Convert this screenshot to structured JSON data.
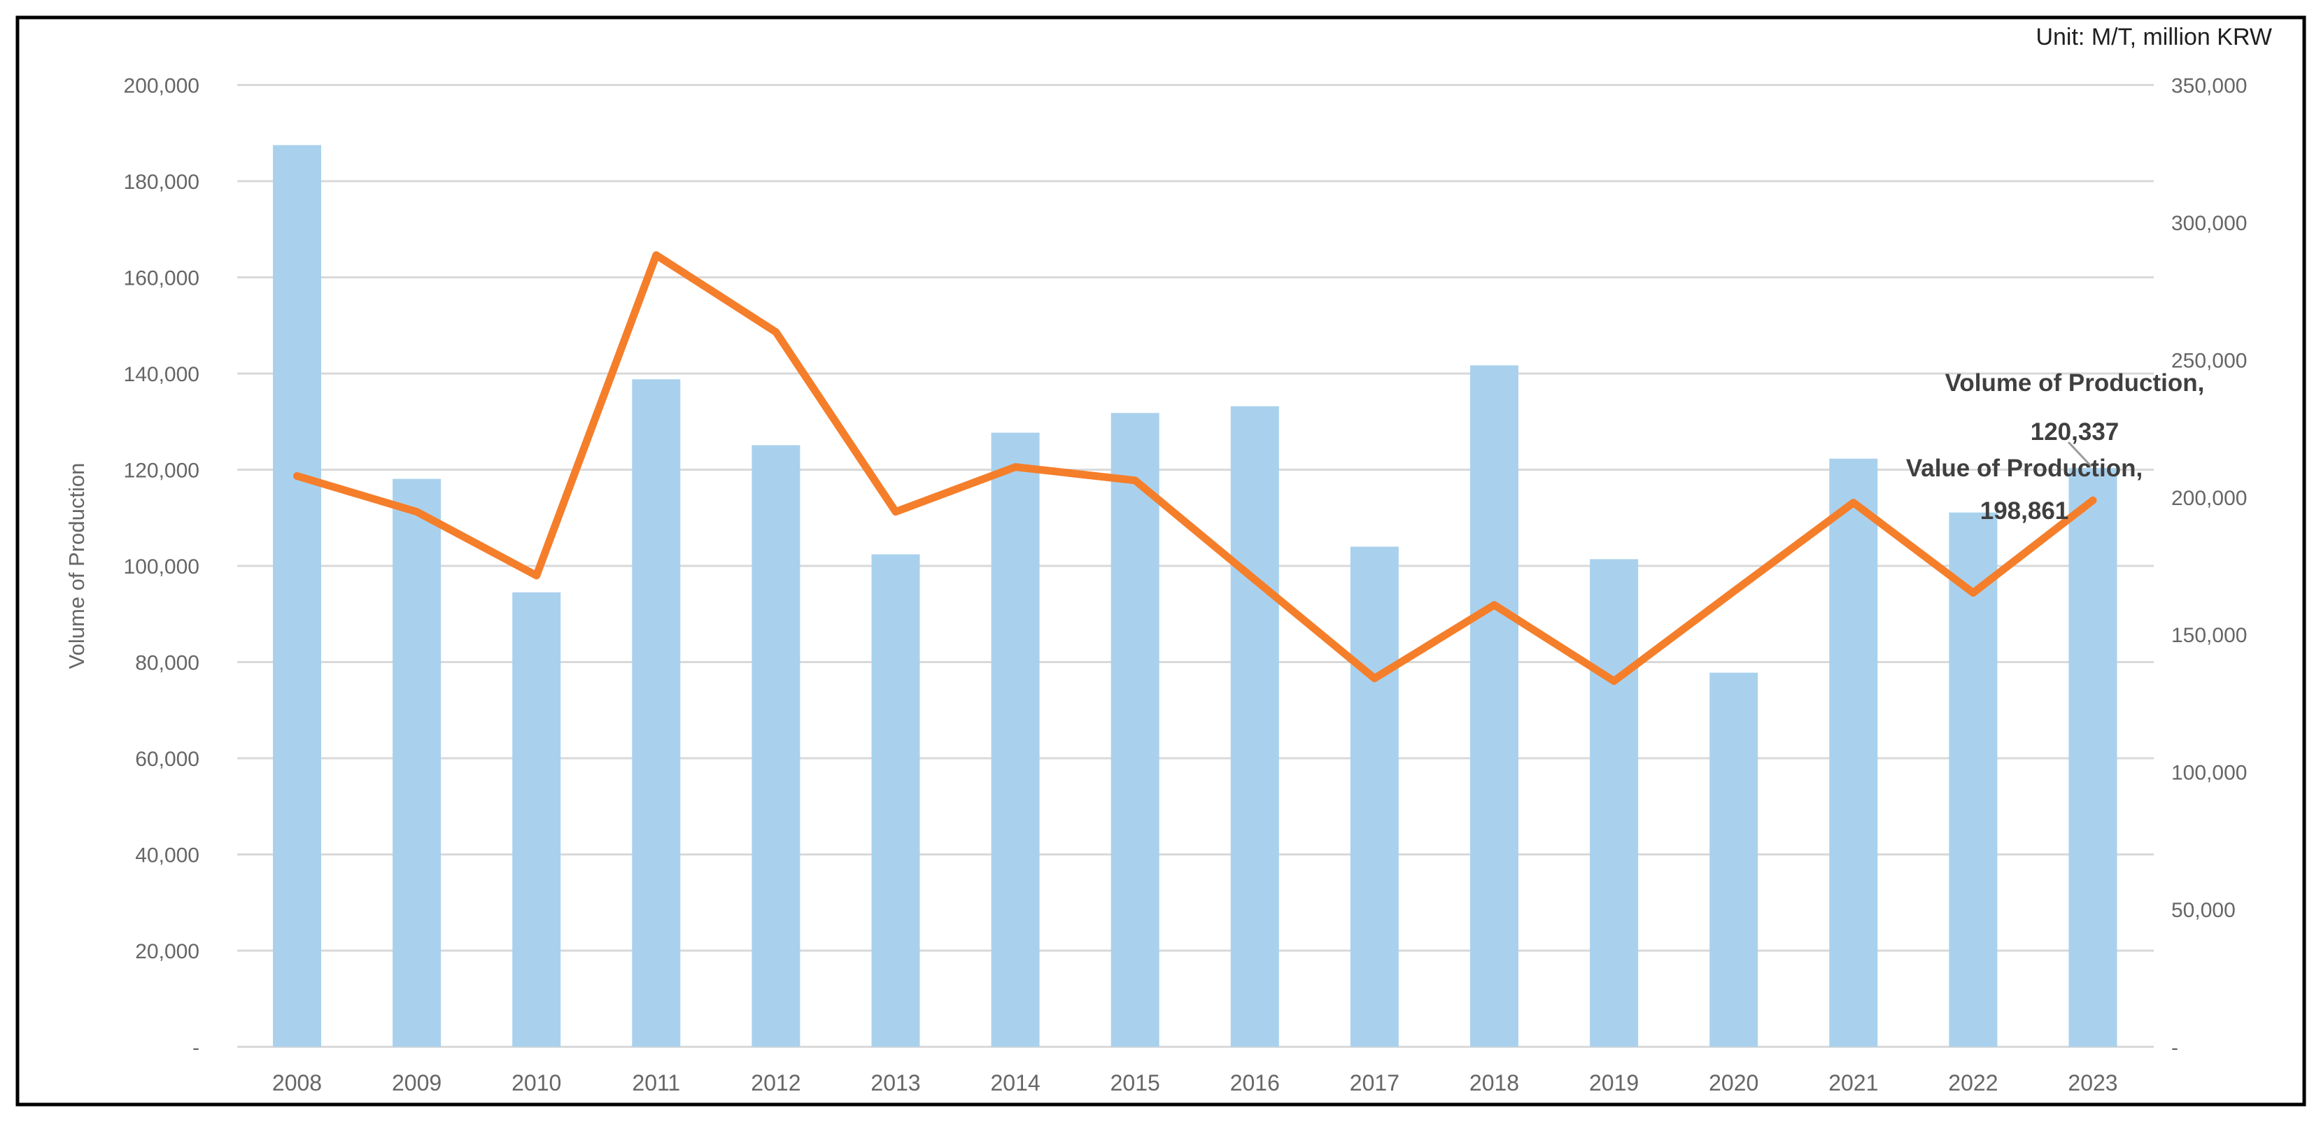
{
  "unit_label": "Unit: M/T, million KRW",
  "colors": {
    "bar_fill": "#A9D1ED",
    "line_stroke": "#F57E2B",
    "gridline": "#D9D9D9",
    "axis_text": "#666666",
    "data_label_text": "#3F3F3F",
    "unit_text": "#1F1F1F",
    "border": "#000000",
    "leader_line": "#9B9B9B",
    "background": "#FFFFFF"
  },
  "chart_data": {
    "type": "bar",
    "subtype": "combo-bar-line-dual-axis",
    "title": "",
    "xlabel": "",
    "categories": [
      "2008",
      "2009",
      "2010",
      "2011",
      "2012",
      "2013",
      "2014",
      "2015",
      "2016",
      "2017",
      "2018",
      "2019",
      "2020",
      "2021",
      "2022",
      "2023"
    ],
    "series": [
      {
        "name": "Volume of Production",
        "type": "bar",
        "axis": "left",
        "unit": "M/T",
        "values": [
          187500,
          118100,
          94500,
          138800,
          125100,
          102400,
          127700,
          131800,
          133200,
          104000,
          141700,
          101400,
          77800,
          122300,
          111100,
          120337
        ]
      },
      {
        "name": "Value of Production",
        "type": "line",
        "axis": "right",
        "unit": "million KRW",
        "values": [
          207700,
          194700,
          171500,
          288100,
          260100,
          194700,
          211000,
          206100,
          170000,
          134100,
          160800,
          133100,
          165700,
          198000,
          165200,
          198861
        ]
      }
    ],
    "y_left": {
      "title": "Volume of Production",
      "min": 0,
      "max": 200000,
      "step": 20000,
      "tick_labels": [
        "200,000",
        "180,000",
        "160,000",
        "140,000",
        "120,000",
        "100,000",
        "80,000",
        "60,000",
        "40,000",
        "20,000",
        "-"
      ]
    },
    "y_right": {
      "title": "",
      "min": 0,
      "max": 350000,
      "step": 50000,
      "tick_labels": [
        "350,000",
        "300,000",
        "250,000",
        "200,000",
        "150,000",
        "100,000",
        "50,000",
        "-"
      ]
    },
    "grid": true,
    "legend_position": "none",
    "callouts": {
      "volume": {
        "line1": "Volume of Production,",
        "line2": "120,337"
      },
      "value": {
        "line1": "Value of Production,",
        "line2": "198,861"
      }
    }
  }
}
